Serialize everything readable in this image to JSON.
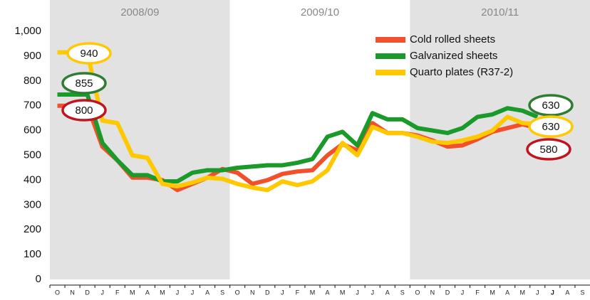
{
  "chart_data": {
    "type": "line",
    "season_labels": [
      "2008/09",
      "2009/10",
      "2010/11"
    ],
    "categories": [
      "O",
      "N",
      "D",
      "J",
      "F",
      "M",
      "A",
      "M",
      "J",
      "J",
      "A",
      "S",
      "O",
      "N",
      "D",
      "J",
      "F",
      "M",
      "A",
      "M",
      "J",
      "J",
      "A",
      "S",
      "O",
      "N",
      "D",
      "J",
      "F",
      "M",
      "A",
      "M",
      "J",
      "J",
      "A",
      "S"
    ],
    "highlighted_category": 33,
    "ylim": [
      0,
      1000
    ],
    "yticks": [
      0,
      100,
      200,
      300,
      400,
      500,
      600,
      700,
      800,
      900,
      {
        "value": 1000,
        "label": "1,000"
      }
    ],
    "legend": "upper right",
    "series": [
      {
        "name": "Cold rolled sheets",
        "color": "#f2502a",
        "values": [
          700,
          700,
          700,
          535,
          480,
          410,
          410,
          400,
          360,
          385,
          410,
          445,
          430,
          385,
          400,
          425,
          435,
          440,
          500,
          545,
          520,
          630,
          590,
          590,
          580,
          560,
          535,
          540,
          565,
          595,
          610,
          625,
          610,
          null,
          null,
          null
        ]
      },
      {
        "name": "Galvanized sheets",
        "color": "#1a9a2a",
        "values": [
          745,
          745,
          745,
          550,
          480,
          420,
          420,
          395,
          395,
          430,
          440,
          440,
          450,
          455,
          460,
          460,
          470,
          485,
          575,
          595,
          540,
          670,
          645,
          645,
          610,
          600,
          590,
          610,
          655,
          665,
          690,
          680,
          655,
          null,
          null,
          null
        ]
      },
      {
        "name": "Quarto plates (R37-2)",
        "color": "#ffc800",
        "values": [
          915,
          915,
          915,
          640,
          630,
          500,
          490,
          385,
          375,
          390,
          410,
          405,
          385,
          370,
          360,
          395,
          380,
          395,
          440,
          550,
          500,
          615,
          590,
          590,
          575,
          555,
          550,
          560,
          575,
          600,
          655,
          630,
          625,
          null,
          null,
          null
        ]
      }
    ],
    "annotations": [
      {
        "text": "940",
        "series": 2
      },
      {
        "text": "855",
        "series": 1
      },
      {
        "text": "800",
        "series": 0
      },
      {
        "text": "630",
        "series": 1
      },
      {
        "text": "630",
        "series": 2
      },
      {
        "text": "580",
        "series": 0
      }
    ]
  }
}
